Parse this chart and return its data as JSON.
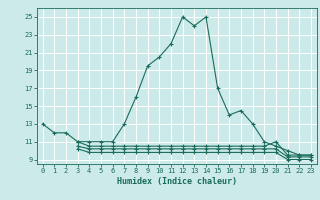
{
  "title": "",
  "xlabel": "Humidex (Indice chaleur)",
  "ylabel": "",
  "background_color": "#cceaea",
  "grid_color": "#ffffff",
  "line_color": "#1a6b5a",
  "x_main": [
    0,
    1,
    2,
    3,
    4,
    5,
    6,
    7,
    8,
    9,
    10,
    11,
    12,
    13,
    14,
    15,
    16,
    17,
    18,
    19,
    20,
    21,
    22,
    23
  ],
  "y_main": [
    13,
    12,
    12,
    11,
    11,
    11,
    11,
    13,
    16,
    19.5,
    20.5,
    22,
    25,
    24,
    25,
    17,
    14,
    14.5,
    13,
    11,
    10.5,
    10,
    9.5,
    9.5
  ],
  "x_flat1": [
    3,
    4,
    5,
    6,
    7,
    8,
    9,
    10,
    11,
    12,
    13,
    14,
    15,
    16,
    17,
    18,
    19,
    20,
    21,
    22,
    23
  ],
  "y_flat1": [
    11,
    10.5,
    10.5,
    10.5,
    10.5,
    10.5,
    10.5,
    10.5,
    10.5,
    10.5,
    10.5,
    10.5,
    10.5,
    10.5,
    10.5,
    10.5,
    10.5,
    11,
    9.5,
    9.5,
    9.5
  ],
  "x_flat2": [
    3,
    4,
    5,
    6,
    7,
    8,
    9,
    10,
    11,
    12,
    13,
    14,
    15,
    16,
    17,
    18,
    19,
    20,
    21,
    22,
    23
  ],
  "y_flat2": [
    10.5,
    10.2,
    10.2,
    10.2,
    10.2,
    10.2,
    10.2,
    10.2,
    10.2,
    10.2,
    10.2,
    10.2,
    10.2,
    10.2,
    10.2,
    10.2,
    10.2,
    10.2,
    9.3,
    9.3,
    9.3
  ],
  "x_flat3": [
    3,
    4,
    5,
    6,
    7,
    8,
    9,
    10,
    11,
    12,
    13,
    14,
    15,
    16,
    17,
    18,
    19,
    20,
    21,
    22,
    23
  ],
  "y_flat3": [
    10.2,
    9.8,
    9.8,
    9.8,
    9.8,
    9.8,
    9.8,
    9.8,
    9.8,
    9.8,
    9.8,
    9.8,
    9.8,
    9.8,
    9.8,
    9.8,
    9.8,
    9.8,
    9.0,
    9.0,
    9.0
  ],
  "xlim": [
    -0.5,
    23.5
  ],
  "ylim": [
    8.5,
    26
  ],
  "yticks": [
    9,
    11,
    13,
    15,
    17,
    19,
    21,
    23,
    25
  ],
  "xticks": [
    0,
    1,
    2,
    3,
    4,
    5,
    6,
    7,
    8,
    9,
    10,
    11,
    12,
    13,
    14,
    15,
    16,
    17,
    18,
    19,
    20,
    21,
    22,
    23
  ]
}
